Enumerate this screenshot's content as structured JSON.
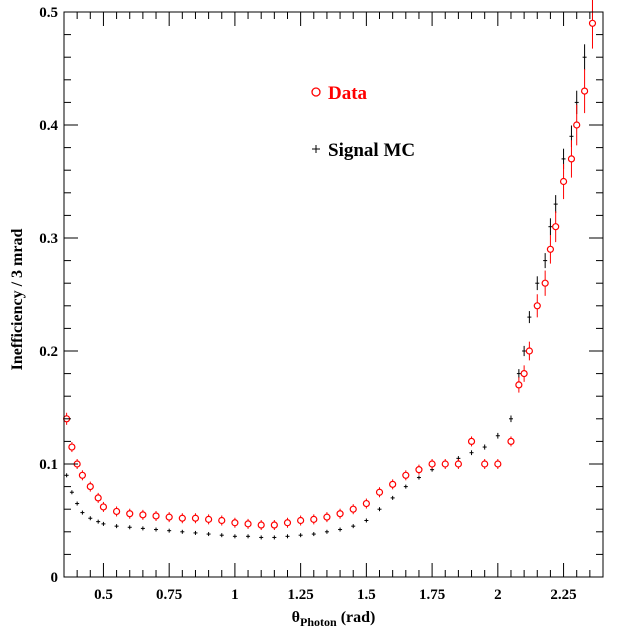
{
  "chart_data": {
    "type": "scatter",
    "title": "",
    "xlabel": "θ",
    "xlabel_subscript": "Photon",
    "xlabel_unit": " (rad)",
    "ylabel": "Inefficiency / 3 mrad",
    "xlim": [
      0.35,
      2.4
    ],
    "ylim": [
      0,
      0.5
    ],
    "x_ticks": [
      0.5,
      0.75,
      1,
      1.25,
      1.5,
      1.75,
      2,
      2.25
    ],
    "x_tick_labels": [
      "0.5",
      "0.75",
      "1",
      "1.25",
      "1.5",
      "1.75",
      "2",
      "2.25"
    ],
    "y_ticks": [
      0,
      0.1,
      0.2,
      0.3,
      0.4,
      0.5
    ],
    "y_tick_labels": [
      "0",
      "0.1",
      "0.2",
      "0.3",
      "0.4",
      "0.5"
    ],
    "grid": false,
    "legend_position": "top-center",
    "series": [
      {
        "name": "Data",
        "marker": "open-circle",
        "color": "#ff0000",
        "x": [
          0.36,
          0.38,
          0.4,
          0.42,
          0.45,
          0.48,
          0.5,
          0.55,
          0.6,
          0.65,
          0.7,
          0.75,
          0.8,
          0.85,
          0.9,
          0.95,
          1.0,
          1.05,
          1.1,
          1.15,
          1.2,
          1.25,
          1.3,
          1.35,
          1.4,
          1.45,
          1.5,
          1.55,
          1.6,
          1.65,
          1.7,
          1.75,
          1.8,
          1.85,
          1.9,
          1.95,
          2.0,
          2.05,
          2.08,
          2.1,
          2.12,
          2.15,
          2.18,
          2.2,
          2.22,
          2.25,
          2.28,
          2.3,
          2.33,
          2.36
        ],
        "y": [
          0.14,
          0.115,
          0.1,
          0.09,
          0.08,
          0.07,
          0.062,
          0.058,
          0.056,
          0.055,
          0.054,
          0.053,
          0.052,
          0.052,
          0.051,
          0.05,
          0.048,
          0.047,
          0.046,
          0.046,
          0.048,
          0.05,
          0.051,
          0.053,
          0.056,
          0.06,
          0.065,
          0.075,
          0.082,
          0.09,
          0.095,
          0.1,
          0.1,
          0.1,
          0.12,
          0.1,
          0.1,
          0.12,
          0.17,
          0.18,
          0.2,
          0.24,
          0.26,
          0.29,
          0.31,
          0.35,
          0.37,
          0.4,
          0.43,
          0.49
        ]
      },
      {
        "name": "Signal MC",
        "marker": "cross",
        "color": "#000000",
        "x": [
          0.36,
          0.38,
          0.4,
          0.42,
          0.45,
          0.48,
          0.5,
          0.55,
          0.6,
          0.65,
          0.7,
          0.75,
          0.8,
          0.85,
          0.9,
          0.95,
          1.0,
          1.05,
          1.1,
          1.15,
          1.2,
          1.25,
          1.3,
          1.35,
          1.4,
          1.45,
          1.5,
          1.55,
          1.6,
          1.65,
          1.7,
          1.75,
          1.8,
          1.85,
          1.9,
          1.95,
          2.0,
          2.05,
          2.08,
          2.1,
          2.12,
          2.15,
          2.18,
          2.2,
          2.22,
          2.25,
          2.28,
          2.3,
          2.33,
          2.36
        ],
        "y": [
          0.09,
          0.075,
          0.065,
          0.057,
          0.052,
          0.049,
          0.047,
          0.045,
          0.044,
          0.043,
          0.042,
          0.041,
          0.04,
          0.039,
          0.038,
          0.037,
          0.036,
          0.036,
          0.035,
          0.035,
          0.036,
          0.037,
          0.038,
          0.04,
          0.042,
          0.045,
          0.05,
          0.06,
          0.07,
          0.08,
          0.088,
          0.095,
          0.1,
          0.105,
          0.11,
          0.115,
          0.125,
          0.14,
          0.18,
          0.2,
          0.23,
          0.26,
          0.28,
          0.31,
          0.33,
          0.37,
          0.39,
          0.42,
          0.46,
          0.5
        ]
      }
    ]
  }
}
